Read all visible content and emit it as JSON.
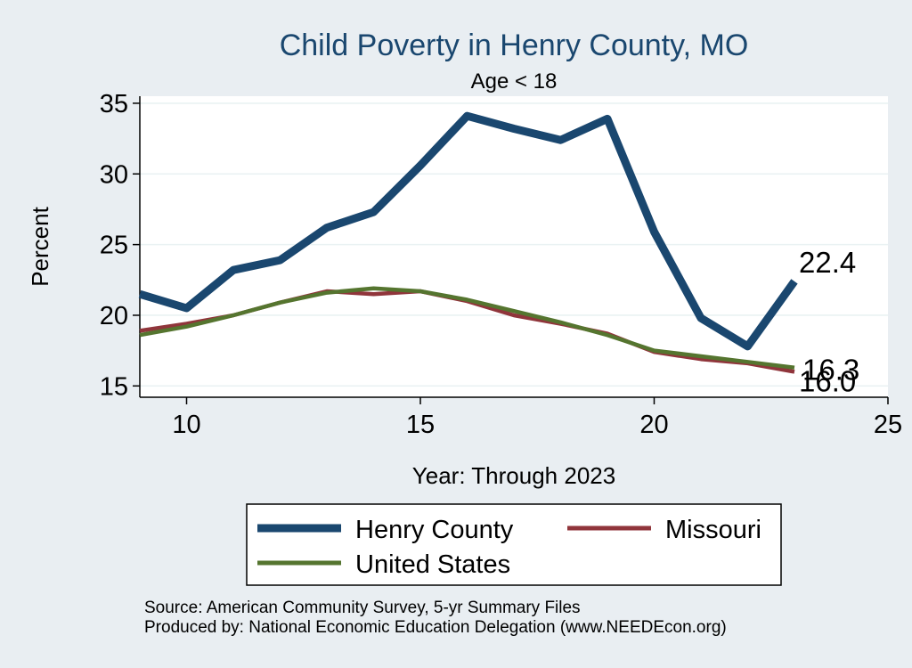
{
  "chart_data": {
    "type": "line",
    "title": "Child Poverty in Henry County, MO",
    "subtitle": "Age < 18",
    "xlabel": "Year: Through 2023",
    "ylabel": "Percent",
    "xlim": [
      9,
      25
    ],
    "ylim": [
      14.2,
      35.5
    ],
    "x_ticks": [
      10,
      15,
      20,
      25
    ],
    "y_ticks": [
      15,
      20,
      25,
      30,
      35
    ],
    "grid": true,
    "legend_position": "bottom",
    "x": [
      9,
      10,
      11,
      12,
      13,
      14,
      15,
      16,
      17,
      18,
      19,
      20,
      21,
      22,
      23
    ],
    "series": [
      {
        "name": "Henry County",
        "color": "#1a476f",
        "values": [
          21.5,
          20.5,
          23.2,
          23.9,
          26.2,
          27.3,
          30.6,
          34.1,
          33.2,
          32.4,
          33.9,
          25.9,
          19.8,
          17.8,
          22.4
        ],
        "end_label": "22.4"
      },
      {
        "name": "Missouri",
        "color": "#90353b",
        "values": [
          18.9,
          19.4,
          20.0,
          20.9,
          21.7,
          21.5,
          21.7,
          21.0,
          20.0,
          19.4,
          18.7,
          17.4,
          16.9,
          16.6,
          16.0
        ],
        "end_label": "16.0"
      },
      {
        "name": "United States",
        "color": "#55752f",
        "values": [
          18.6,
          19.2,
          20.0,
          20.9,
          21.6,
          21.9,
          21.7,
          21.1,
          20.3,
          19.5,
          18.6,
          17.5,
          17.1,
          16.7,
          16.3
        ],
        "end_label": "16.3"
      }
    ]
  },
  "footer": {
    "source": "Source: American Community Survey, 5-yr Summary Files",
    "produced_by": "Produced by: National Economic Education Delegation (www.NEEDEcon.org)"
  }
}
